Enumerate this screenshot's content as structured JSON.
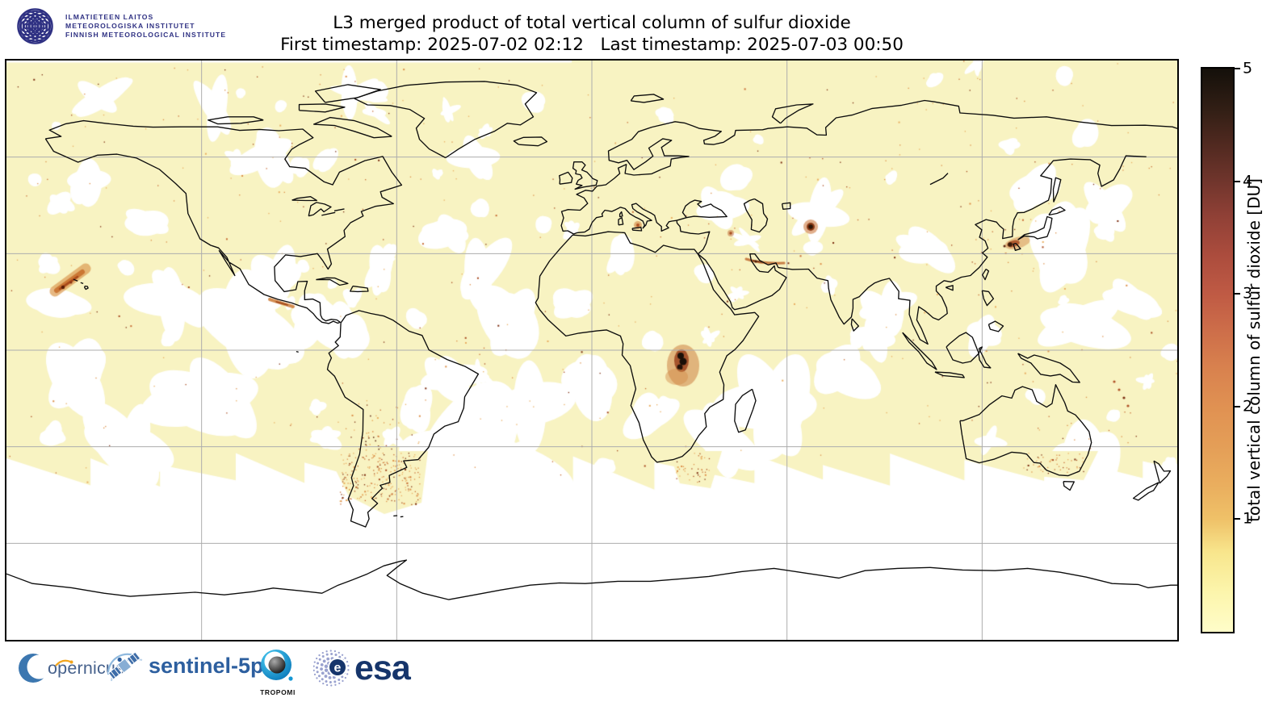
{
  "header": {
    "logo_lines": [
      "ILMATIETEEN LAITOS",
      "METEOROLOGISKA INSTITUTET",
      "FINNISH METEOROLOGICAL INSTITUTE"
    ],
    "title": "L3 merged product of total vertical column of sulfur dioxide",
    "subtitle": "First timestamp: 2025-07-02 02:12   Last timestamp: 2025-07-03 00:50",
    "first_timestamp": "2025-07-02 02:12",
    "last_timestamp": "2025-07-03 00:50"
  },
  "chart_data": {
    "type": "heatmap",
    "title": "L3 merged product of total vertical column of sulfur dioxide",
    "projection": "equirectangular world map, lon -180..180, lat -90..90",
    "colorbar": {
      "label": "total vertical column of sulfur dioxide [DU]",
      "vmin": 0,
      "vmax": 5,
      "ticks": [
        1,
        2,
        3,
        4,
        5
      ],
      "stops": [
        {
          "p": 0,
          "c": "#fffdc9"
        },
        {
          "p": 7,
          "c": "#fcf5ac"
        },
        {
          "p": 14,
          "c": "#f8e68d"
        },
        {
          "p": 20,
          "c": "#efc168"
        },
        {
          "p": 26,
          "c": "#eaae5e"
        },
        {
          "p": 33,
          "c": "#e49e57"
        },
        {
          "p": 40,
          "c": "#e09152"
        },
        {
          "p": 47,
          "c": "#d8814e"
        },
        {
          "p": 54,
          "c": "#cc6c49"
        },
        {
          "p": 60,
          "c": "#bf5a44"
        },
        {
          "p": 67,
          "c": "#ab4c3d"
        },
        {
          "p": 74,
          "c": "#8f4036"
        },
        {
          "p": 80,
          "c": "#70352c"
        },
        {
          "p": 86,
          "c": "#532a21"
        },
        {
          "p": 92,
          "c": "#352016"
        },
        {
          "p": 100,
          "c": "#14100a"
        }
      ]
    },
    "gridlines": {
      "lon": [
        -120,
        -60,
        0,
        60,
        120
      ],
      "lat": [
        60,
        30,
        0,
        -30,
        -60
      ],
      "color": "#adadad"
    },
    "field_background": "0-0.5 DU pale yellow over most of globe; white = no retrieval (cloud gaps, polar night band south of ~55S)",
    "no_data_color": "#ffffff",
    "background_color": "#f8f3c2",
    "hotspots": [
      {
        "region": "Pacific SW of Hawaii (Kilauea plume)",
        "lon": -162,
        "lat": 20,
        "peak_DU": 2.5
      },
      {
        "region": "DR Congo Virunga (Nyamuragira/Nyiragongo)",
        "lon": 28.5,
        "lat": -3,
        "peak_DU": 5
      },
      {
        "region": "Southern Japan (Sakurajima area)",
        "lon": 131,
        "lat": 32,
        "peak_DU": 4
      },
      {
        "region": "Central Asia point source",
        "lon": 68,
        "lat": 38,
        "peak_DU": 4
      },
      {
        "region": "Persian Gulf coast",
        "lon": 52,
        "lat": 27,
        "peak_DU": 3
      },
      {
        "region": "Sicily (Etna)",
        "lon": 15,
        "lat": 37.7,
        "peak_DU": 2
      },
      {
        "region": "Guatemala (Fuego/Pacaya plume)",
        "lon": -92,
        "lat": 14.5,
        "peak_DU": 2
      },
      {
        "region": "Chile/Argentina diffuse speckle field",
        "lon": -67,
        "lat": -30,
        "peak_DU": 2
      },
      {
        "region": "South Africa Highveld",
        "lon": 29,
        "lat": -27,
        "peak_DU": 2
      },
      {
        "region": "SW Pacific arc (Vanuatu / New Caledonia)",
        "lon": 160,
        "lat": -21,
        "peak_DU": 2
      }
    ]
  },
  "footer": {
    "copernicus_text": "opernicus",
    "sentinel_label": "sentinel-5p",
    "tropomi_caption": "TROPOMI",
    "esa_label": "esa",
    "esa_emblem_letter": "e"
  }
}
